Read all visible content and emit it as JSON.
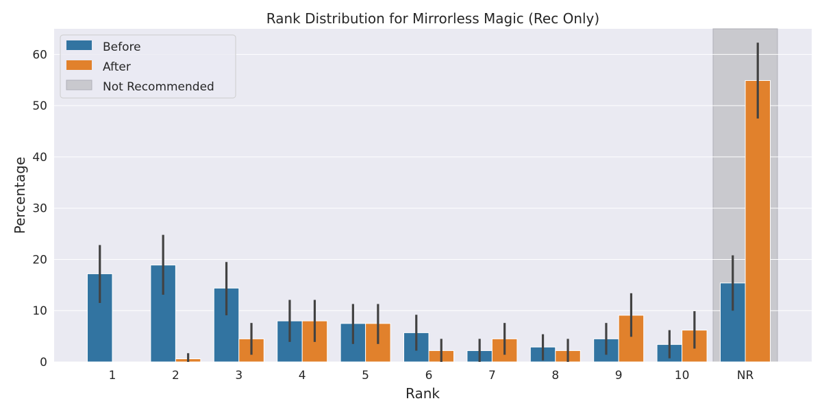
{
  "chart_data": {
    "type": "bar",
    "title": "Rank Distribution for Mirrorless Magic (Rec Only)",
    "xlabel": "Rank",
    "ylabel": "Percentage",
    "categories": [
      "1",
      "2",
      "3",
      "4",
      "5",
      "6",
      "7",
      "8",
      "9",
      "10",
      "NR"
    ],
    "ylim": [
      0,
      65
    ],
    "yticks": [
      0,
      10,
      20,
      30,
      40,
      50,
      60
    ],
    "grid": true,
    "legend_position": "top-left",
    "series": [
      {
        "name": "Before",
        "color": "#3274a1",
        "values": [
          17.2,
          18.9,
          14.4,
          8.0,
          7.5,
          5.7,
          2.2,
          2.9,
          4.5,
          3.4,
          15.4
        ],
        "ci_low": [
          11.5,
          13.1,
          9.1,
          3.9,
          3.5,
          2.2,
          0.0,
          0.3,
          1.4,
          0.7,
          10.0
        ],
        "ci_high": [
          22.8,
          24.8,
          19.5,
          12.1,
          11.3,
          9.2,
          4.5,
          5.4,
          7.6,
          6.2,
          20.8
        ]
      },
      {
        "name": "After",
        "color": "#e1812c",
        "values": [
          0.0,
          0.6,
          4.5,
          8.0,
          7.5,
          2.2,
          4.5,
          2.2,
          9.1,
          6.2,
          54.9
        ],
        "ci_low": [
          0.0,
          0.0,
          1.4,
          3.9,
          3.5,
          0.0,
          1.4,
          0.0,
          4.9,
          2.6,
          47.5
        ],
        "ci_high": [
          0.0,
          1.7,
          7.6,
          12.1,
          11.3,
          4.5,
          7.6,
          4.5,
          13.4,
          9.9,
          62.3
        ]
      }
    ],
    "shaded_region": {
      "category": "NR",
      "label": "Not Recommended",
      "color": "#c9c9ce"
    }
  }
}
